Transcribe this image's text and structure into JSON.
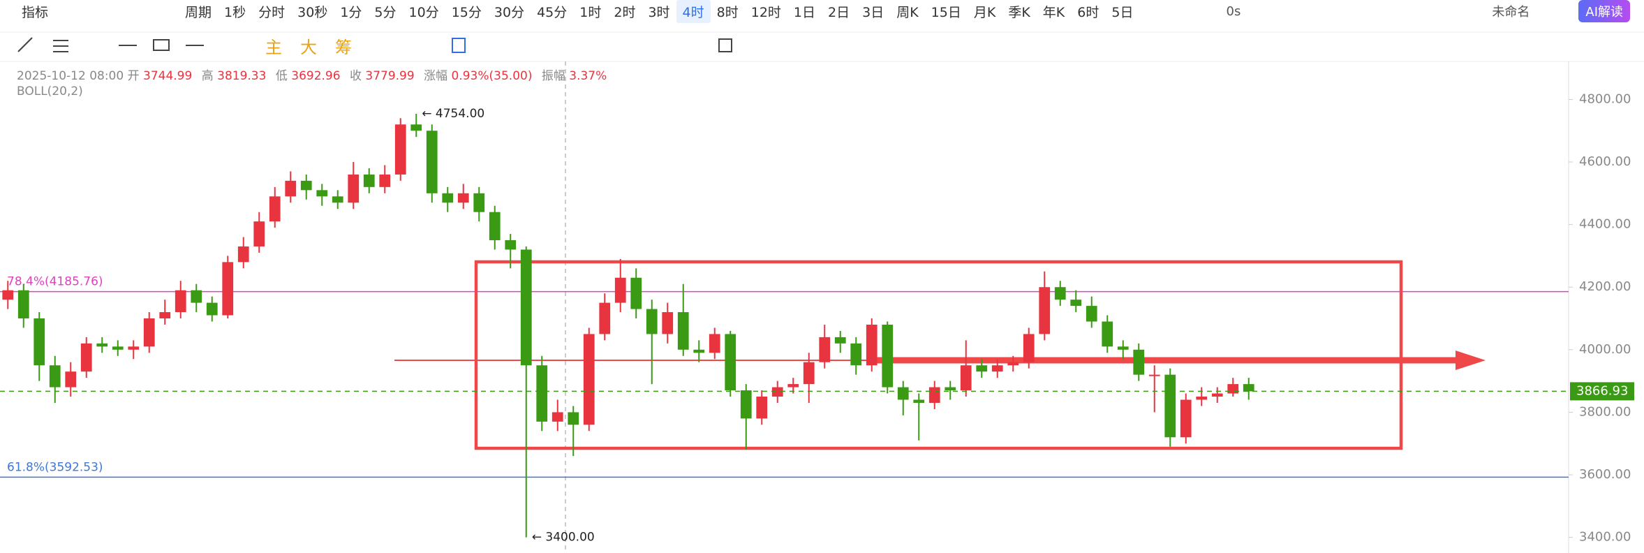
{
  "toolbar": {
    "indicator": "指标",
    "period": "周期",
    "intervals": [
      "1秒",
      "分时",
      "30秒",
      "1分",
      "5分",
      "10分",
      "15分",
      "30分",
      "45分",
      "1时",
      "2时",
      "3时",
      "4时",
      "8时",
      "12时",
      "1日",
      "2日",
      "3日",
      "周K",
      "15日",
      "月K",
      "季K",
      "年K",
      "6时",
      "5日"
    ],
    "active_interval": "4时",
    "timer": "0s",
    "layout_name": "未命名",
    "ai": "AI解读",
    "tools": [
      "主",
      "大",
      "筹"
    ]
  },
  "info": {
    "date": "2025-10-12 08:00",
    "open_label": "开",
    "open": "3744.99",
    "high_label": "高",
    "high": "3819.33",
    "low_label": "低",
    "low": "3692.96",
    "close_label": "收",
    "close": "3779.99",
    "change_label": "涨幅",
    "change": "0.93%(35.00)",
    "amplitude_label": "振幅",
    "amplitude": "3.37%",
    "indicator": "BOLL(20,2)"
  },
  "chart_data": {
    "type": "candlestick",
    "up_color": "#e8343f",
    "down_color": "#3a9a14",
    "ylim": [
      3350,
      4917
    ],
    "yticks": [
      {
        "value": 3400,
        "label": "3400.00"
      },
      {
        "value": 3600,
        "label": "3600.00"
      },
      {
        "value": 3800,
        "label": "3800.00"
      },
      {
        "value": 4000,
        "label": "4000.00"
      },
      {
        "value": 4200,
        "label": "4200.00"
      },
      {
        "value": 4400,
        "label": "4400.00"
      },
      {
        "value": 4600,
        "label": "4600.00"
      },
      {
        "value": 4800,
        "label": "4800.00"
      }
    ],
    "open": [
      4160,
      4190,
      4100,
      3950,
      3880,
      3930,
      4020,
      4010,
      4000,
      4010,
      4100,
      4120,
      4190,
      4150,
      4110,
      4280,
      4330,
      4410,
      4490,
      4540,
      4510,
      4490,
      4470,
      4560,
      4520,
      4560,
      4720,
      4700,
      4500,
      4470,
      4500,
      4440,
      4350,
      4320,
      3950,
      3770,
      3800,
      3760,
      4050,
      4150,
      4230,
      4130,
      4050,
      4120,
      4000,
      3990,
      4050,
      3870,
      3780,
      3850,
      3880,
      3890,
      3960,
      4040,
      4020,
      3950,
      4080,
      3880,
      3840,
      3830,
      3880,
      3870,
      3950,
      3930,
      3950,
      3960,
      4050,
      4200,
      4160,
      4140,
      4090,
      4010,
      4000,
      3920,
      3920,
      3720,
      3840,
      3850,
      3860,
      3890
    ],
    "high": [
      4220,
      4210,
      4120,
      3980,
      3960,
      4040,
      4040,
      4030,
      4030,
      4120,
      4160,
      4220,
      4210,
      4170,
      4300,
      4360,
      4440,
      4520,
      4570,
      4560,
      4530,
      4510,
      4600,
      4580,
      4590,
      4740,
      4754,
      4720,
      4520,
      4530,
      4520,
      4460,
      4370,
      4330,
      3980,
      3840,
      3820,
      4070,
      4180,
      4290,
      4260,
      4160,
      4150,
      4210,
      4030,
      4070,
      4060,
      3890,
      3870,
      3900,
      3910,
      3990,
      4080,
      4060,
      4040,
      4100,
      4090,
      3900,
      3860,
      3900,
      3900,
      4030,
      3970,
      3970,
      3980,
      4070,
      4250,
      4220,
      4190,
      4170,
      4110,
      4030,
      4020,
      3950,
      3940,
      3860,
      3880,
      3880,
      3910,
      3910
    ],
    "low": [
      4130,
      4070,
      3900,
      3830,
      3850,
      3910,
      3990,
      3980,
      3970,
      3990,
      4080,
      4100,
      4120,
      4090,
      4100,
      4260,
      4310,
      4390,
      4470,
      4480,
      4460,
      4450,
      4450,
      4500,
      4500,
      4540,
      4680,
      4470,
      4440,
      4450,
      4410,
      4320,
      4260,
      3400,
      3740,
      3740,
      3660,
      3740,
      4030,
      4120,
      4100,
      3890,
      4020,
      3980,
      3960,
      3970,
      3850,
      3680,
      3760,
      3830,
      3860,
      3830,
      3940,
      3990,
      3920,
      3930,
      3860,
      3790,
      3710,
      3810,
      3840,
      3850,
      3910,
      3910,
      3930,
      3940,
      4030,
      4140,
      4120,
      4070,
      3990,
      3970,
      3900,
      3800,
      3690,
      3700,
      3820,
      3830,
      3850,
      3840
    ],
    "close": [
      4190,
      4100,
      3950,
      3880,
      3930,
      4020,
      4010,
      4000,
      4010,
      4100,
      4120,
      4190,
      4150,
      4110,
      4280,
      4330,
      4410,
      4490,
      4540,
      4510,
      4490,
      4470,
      4560,
      4520,
      4560,
      4720,
      4700,
      4500,
      4470,
      4500,
      4440,
      4350,
      4320,
      3950,
      3770,
      3800,
      3760,
      4050,
      4150,
      4230,
      4130,
      4050,
      4120,
      4000,
      3990,
      4050,
      3870,
      3780,
      3850,
      3880,
      3890,
      3960,
      4040,
      4020,
      3950,
      4080,
      3880,
      3840,
      3830,
      3880,
      3870,
      3950,
      3930,
      3950,
      3960,
      4050,
      4200,
      4160,
      4140,
      4090,
      4010,
      4000,
      3920,
      3920,
      3720,
      3840,
      3850,
      3860,
      3890,
      3866.93
    ],
    "last_price": {
      "value": 3866.93,
      "label": "3866.93"
    },
    "fib_lines": [
      {
        "value": 4185.76,
        "label": "78.4%(4185.76)",
        "color": "#e040c0"
      },
      {
        "value": 3592.53,
        "label": "61.8%(3592.53)",
        "color": "#3c78d8"
      }
    ],
    "extremes": [
      {
        "value": 4754,
        "label": "← 4754.00",
        "index": 26
      },
      {
        "value": 3400,
        "label": "← 3400.00",
        "index": 33
      }
    ]
  }
}
